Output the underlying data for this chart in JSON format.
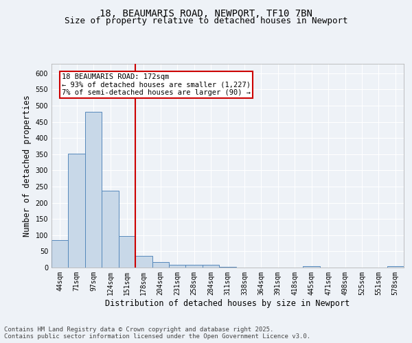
{
  "title_line1": "18, BEAUMARIS ROAD, NEWPORT, TF10 7BN",
  "title_line2": "Size of property relative to detached houses in Newport",
  "xlabel": "Distribution of detached houses by size in Newport",
  "ylabel": "Number of detached properties",
  "bar_labels": [
    "44sqm",
    "71sqm",
    "97sqm",
    "124sqm",
    "151sqm",
    "178sqm",
    "204sqm",
    "231sqm",
    "258sqm",
    "284sqm",
    "311sqm",
    "338sqm",
    "364sqm",
    "391sqm",
    "418sqm",
    "445sqm",
    "471sqm",
    "498sqm",
    "525sqm",
    "551sqm",
    "578sqm"
  ],
  "bar_values": [
    85,
    352,
    480,
    237,
    97,
    36,
    16,
    8,
    8,
    8,
    3,
    0,
    0,
    0,
    0,
    5,
    0,
    0,
    0,
    0,
    5
  ],
  "bar_color": "#c8d8e8",
  "bar_edge_color": "#5588bb",
  "vline_position": 4.5,
  "annotation_text": "18 BEAUMARIS ROAD: 172sqm\n← 93% of detached houses are smaller (1,227)\n7% of semi-detached houses are larger (90) →",
  "annotation_box_color": "#ffffff",
  "annotation_box_edge_color": "#cc0000",
  "vline_color": "#cc0000",
  "ylim": [
    0,
    630
  ],
  "yticks": [
    0,
    50,
    100,
    150,
    200,
    250,
    300,
    350,
    400,
    450,
    500,
    550,
    600
  ],
  "footer_text": "Contains HM Land Registry data © Crown copyright and database right 2025.\nContains public sector information licensed under the Open Government Licence v3.0.",
  "bg_color": "#eef2f7",
  "plot_bg_color": "#eef2f7",
  "grid_color": "#ffffff",
  "title_fontsize": 10,
  "subtitle_fontsize": 9,
  "axis_label_fontsize": 8.5,
  "tick_fontsize": 7,
  "footer_fontsize": 6.5,
  "annotation_fontsize": 7.5
}
